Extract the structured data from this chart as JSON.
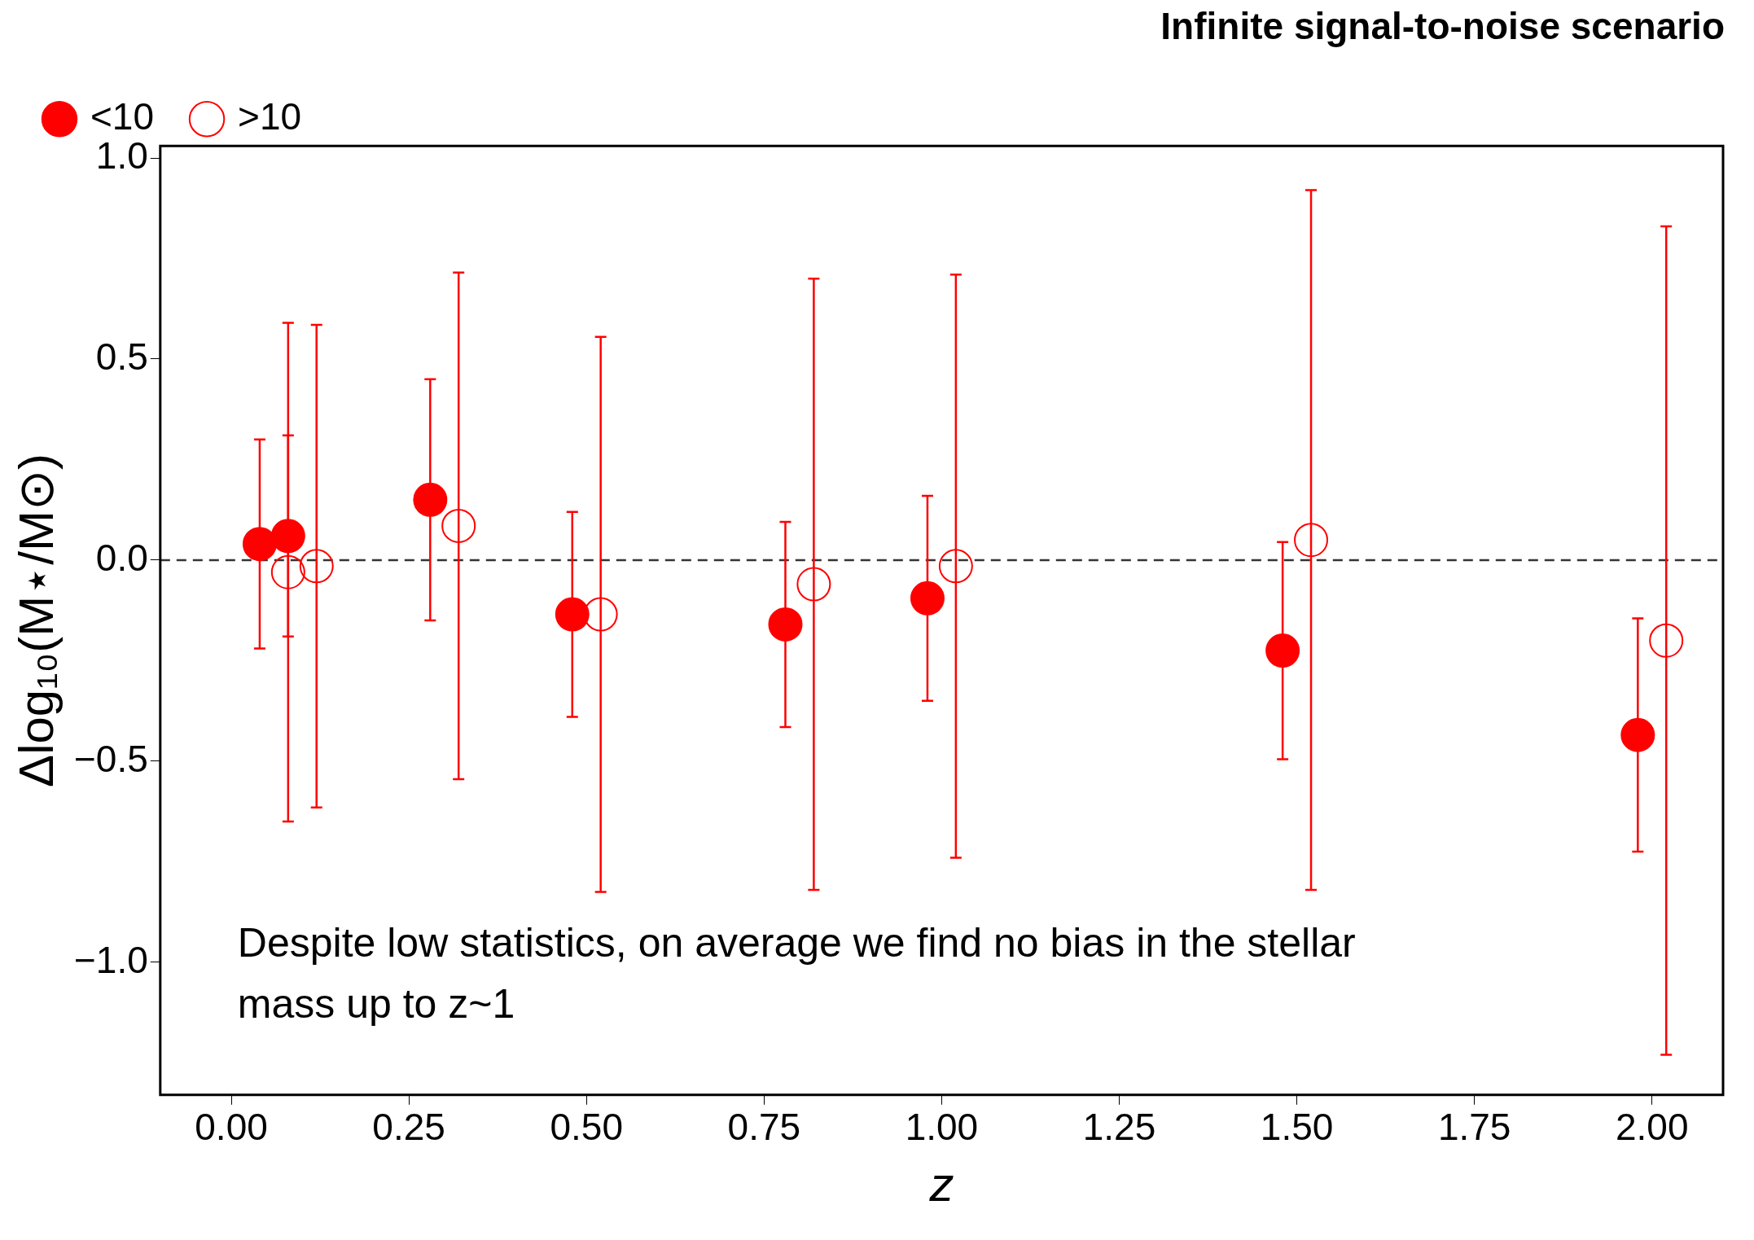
{
  "chart_data": {
    "type": "scatter",
    "title": "Infinite signal-to-noise scenario",
    "xlabel": "z",
    "ylabel": "Δlog₁₀(M⋆/M⊙)",
    "annotations": [
      "Despite low statistics, on average we find no bias in the stellar mass up to z~1"
    ],
    "series": [
      {
        "name": "<10",
        "color": "#ff0000",
        "marker": "circle",
        "x": [
          0.04,
          0.08,
          0.28,
          0.48,
          0.78,
          0.98,
          1.48,
          1.98
        ],
        "values": [
          0.04,
          0.06,
          0.15,
          -0.135,
          -0.16,
          -0.095,
          -0.225,
          -0.435
        ],
        "errors": [
          0.26,
          0.25,
          0.3,
          0.255,
          0.255,
          0.255,
          0.27,
          0.29
        ]
      },
      {
        "name": ">10",
        "color": "#ff0000",
        "marker": "circle_open",
        "x": [
          0.08,
          0.12,
          0.32,
          0.52,
          0.82,
          1.02,
          1.52,
          2.02
        ],
        "values": [
          -0.03,
          -0.015,
          0.085,
          -0.135,
          -0.06,
          -0.015,
          0.05,
          -0.2
        ],
        "errors": [
          0.62,
          0.6,
          0.63,
          0.69,
          0.76,
          0.725,
          0.87,
          1.03
        ]
      }
    ],
    "xlim": [
      -0.1,
      2.1
    ],
    "ylim": [
      -1.33,
      1.03
    ],
    "xticks": [
      {
        "value": 0,
        "label": "0.00"
      },
      {
        "value": 0.25,
        "label": "0.25"
      },
      {
        "value": 0.5,
        "label": "0.50"
      },
      {
        "value": 0.75,
        "label": "0.75"
      },
      {
        "value": 1,
        "label": "1.00"
      },
      {
        "value": 1.25,
        "label": "1.25"
      },
      {
        "value": 1.5,
        "label": "1.50"
      },
      {
        "value": 1.75,
        "label": "1.75"
      },
      {
        "value": 2,
        "label": "2.00"
      }
    ],
    "yticks": [
      {
        "value": -1,
        "label": "−1.0"
      },
      {
        "value": -0.5,
        "label": "−0.5"
      },
      {
        "value": 0,
        "label": "0.0"
      },
      {
        "value": 0.5,
        "label": "0.5"
      },
      {
        "value": 1,
        "label": "1.0"
      }
    ],
    "ref_lines": [
      {
        "axis": "y",
        "value": 0,
        "color": "#333333",
        "line_style": "dashed"
      }
    ],
    "grid": false,
    "legend": "top left"
  }
}
